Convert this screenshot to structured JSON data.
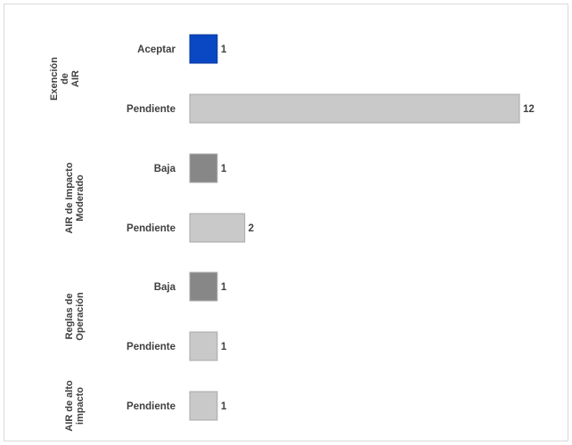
{
  "chart_data": {
    "type": "bar",
    "orientation": "horizontal",
    "title": "",
    "xlabel": "",
    "ylabel": "",
    "xlim": [
      0,
      12
    ],
    "grid": false,
    "legend": "none",
    "groups": [
      {
        "label_lines": [
          "Exención",
          "de",
          "AIR"
        ],
        "bars": [
          {
            "category": "Aceptar",
            "value": 1,
            "color": "#0a47c2"
          },
          {
            "category": "Pendiente",
            "value": 12,
            "color": "#c9c9c9"
          }
        ]
      },
      {
        "label_lines": [
          "AIR de Impacto",
          "Moderado"
        ],
        "bars": [
          {
            "category": "Baja",
            "value": 1,
            "color": "#878787"
          },
          {
            "category": "Pendiente",
            "value": 2,
            "color": "#c9c9c9"
          }
        ]
      },
      {
        "label_lines": [
          "Reglas de",
          "Operación"
        ],
        "bars": [
          {
            "category": "Baja",
            "value": 1,
            "color": "#878787"
          },
          {
            "category": "Pendiente",
            "value": 1,
            "color": "#c9c9c9"
          }
        ]
      },
      {
        "label_lines": [
          "AIR de alto",
          "impacto"
        ],
        "bars": [
          {
            "category": "Pendiente",
            "value": 1,
            "color": "#c9c9c9"
          }
        ]
      }
    ]
  }
}
